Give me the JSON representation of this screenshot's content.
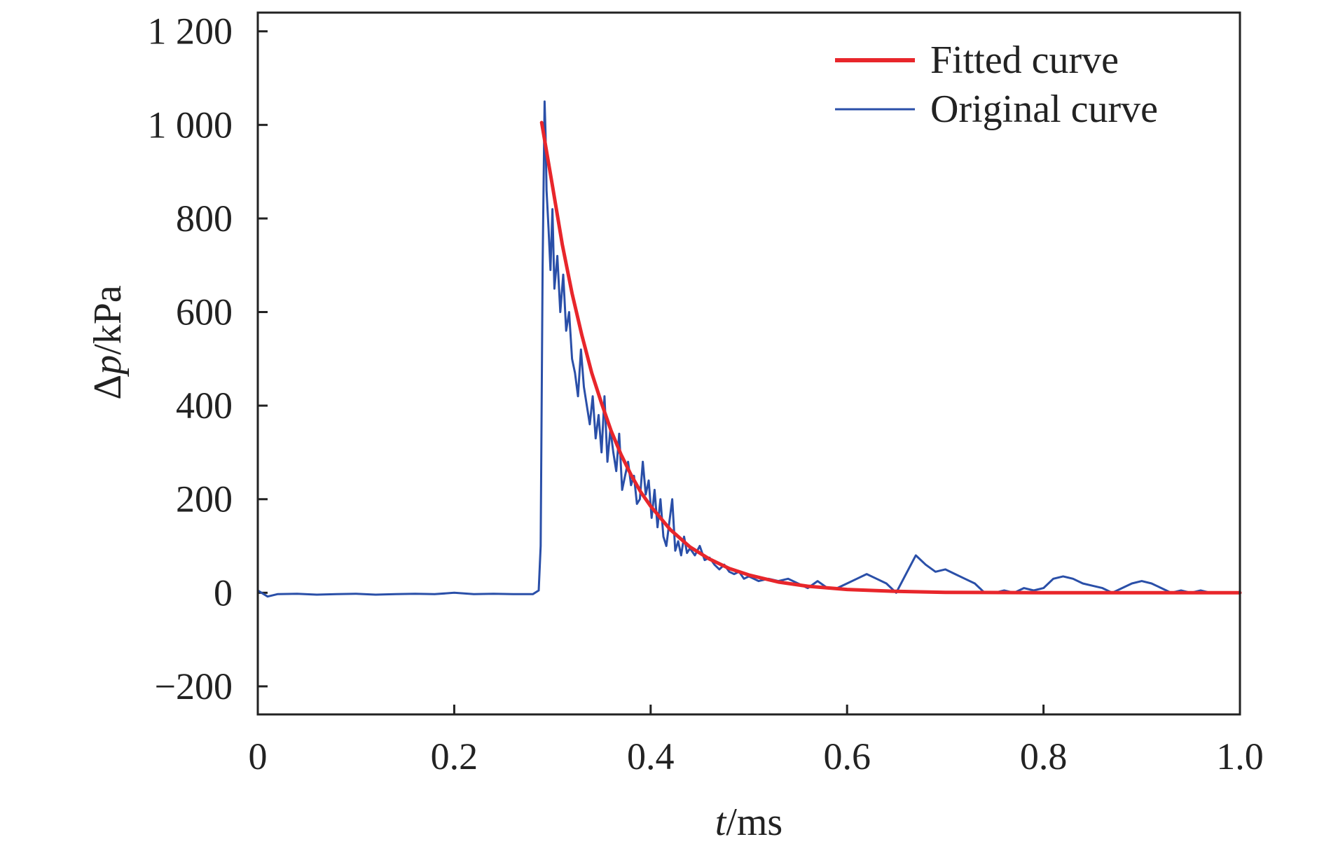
{
  "chart_data": {
    "type": "line",
    "xlabel_var": "t",
    "xlabel_unit": "/ms",
    "ylabel_var": "p",
    "ylabel_prefix": "Δ",
    "ylabel_unit": "/kPa",
    "xlim": [
      0,
      1.0
    ],
    "ylim": [
      -260,
      1240
    ],
    "x_ticks": [
      0,
      0.2,
      0.4,
      0.6,
      0.8,
      1.0
    ],
    "x_tick_labels": [
      "0",
      "0.2",
      "0.4",
      "0.6",
      "0.8",
      "1.0"
    ],
    "y_ticks": [
      -200,
      0,
      200,
      400,
      600,
      800,
      1000,
      1200
    ],
    "y_tick_labels": [
      "−200",
      "0",
      "200",
      "400",
      "600",
      "800",
      "1 000",
      "1 200"
    ],
    "grid": false,
    "legend_position": "top-right",
    "series": [
      {
        "name": "Fitted curve",
        "color": "#e8262b",
        "x": [
          0.289,
          0.3,
          0.31,
          0.32,
          0.33,
          0.34,
          0.35,
          0.36,
          0.37,
          0.38,
          0.39,
          0.4,
          0.42,
          0.44,
          0.46,
          0.48,
          0.5,
          0.53,
          0.56,
          0.6,
          0.65,
          0.7,
          0.8,
          0.9,
          1.0
        ],
        "values": [
          1005,
          870,
          745,
          640,
          550,
          470,
          405,
          345,
          295,
          252,
          215,
          185,
          135,
          98,
          72,
          52,
          38,
          23,
          14,
          7,
          3,
          1,
          0,
          0,
          0
        ]
      },
      {
        "name": "Original curve",
        "color": "#2a4fa8",
        "x": [
          0,
          0.01,
          0.02,
          0.04,
          0.06,
          0.08,
          0.1,
          0.12,
          0.14,
          0.16,
          0.18,
          0.2,
          0.22,
          0.24,
          0.26,
          0.28,
          0.286,
          0.288,
          0.29,
          0.292,
          0.293,
          0.294,
          0.296,
          0.298,
          0.3,
          0.302,
          0.305,
          0.308,
          0.311,
          0.314,
          0.317,
          0.32,
          0.323,
          0.326,
          0.329,
          0.332,
          0.335,
          0.338,
          0.341,
          0.344,
          0.347,
          0.35,
          0.353,
          0.356,
          0.359,
          0.362,
          0.365,
          0.368,
          0.371,
          0.374,
          0.377,
          0.38,
          0.383,
          0.386,
          0.389,
          0.392,
          0.395,
          0.398,
          0.401,
          0.404,
          0.407,
          0.41,
          0.413,
          0.416,
          0.419,
          0.422,
          0.425,
          0.428,
          0.431,
          0.434,
          0.437,
          0.44,
          0.445,
          0.45,
          0.455,
          0.46,
          0.465,
          0.47,
          0.475,
          0.48,
          0.485,
          0.49,
          0.495,
          0.5,
          0.51,
          0.52,
          0.53,
          0.54,
          0.55,
          0.56,
          0.57,
          0.58,
          0.59,
          0.6,
          0.61,
          0.62,
          0.63,
          0.64,
          0.65,
          0.66,
          0.67,
          0.68,
          0.69,
          0.7,
          0.71,
          0.72,
          0.73,
          0.74,
          0.75,
          0.76,
          0.77,
          0.78,
          0.79,
          0.8,
          0.81,
          0.82,
          0.83,
          0.84,
          0.85,
          0.86,
          0.87,
          0.88,
          0.89,
          0.9,
          0.91,
          0.92,
          0.93,
          0.94,
          0.95,
          0.96,
          0.97,
          0.98,
          0.99,
          1.0
        ],
        "values": [
          5,
          -8,
          -3,
          -2,
          -4,
          -3,
          -2,
          -4,
          -3,
          -2,
          -3,
          0,
          -3,
          -2,
          -3,
          -3,
          5,
          100,
          700,
          1050,
          980,
          860,
          780,
          690,
          820,
          650,
          720,
          600,
          680,
          560,
          600,
          500,
          470,
          420,
          520,
          440,
          400,
          360,
          420,
          330,
          380,
          300,
          420,
          280,
          350,
          300,
          260,
          340,
          220,
          250,
          280,
          230,
          250,
          190,
          200,
          280,
          210,
          240,
          160,
          220,
          140,
          200,
          120,
          100,
          150,
          200,
          90,
          110,
          80,
          120,
          85,
          95,
          80,
          100,
          70,
          75,
          60,
          50,
          60,
          45,
          40,
          45,
          30,
          35,
          25,
          30,
          25,
          30,
          20,
          10,
          25,
          10,
          10,
          20,
          30,
          40,
          30,
          20,
          0,
          40,
          80,
          60,
          45,
          50,
          40,
          30,
          20,
          0,
          0,
          5,
          0,
          10,
          5,
          10,
          30,
          35,
          30,
          20,
          15,
          10,
          0,
          10,
          20,
          25,
          20,
          10,
          0,
          5,
          0,
          5,
          0,
          0,
          0,
          0
        ]
      }
    ]
  }
}
